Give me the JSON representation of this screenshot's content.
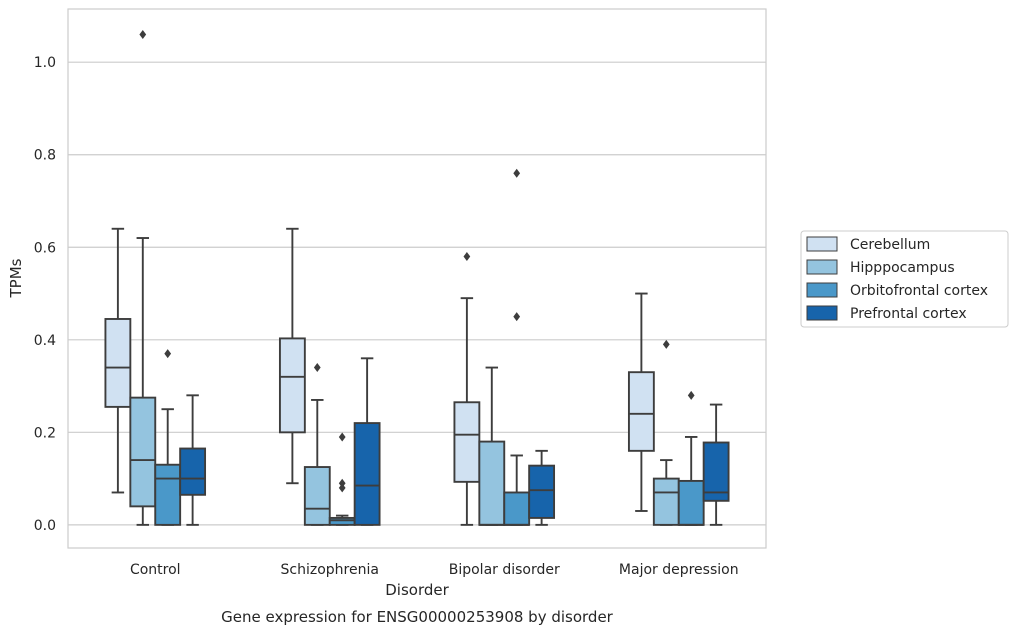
{
  "chart_data": {
    "type": "box",
    "title": "",
    "caption": "Gene expression for ENSG00000253908 by disorder",
    "xlabel": "Disorder",
    "ylabel": "TPMs",
    "ylim": [
      -0.05,
      1.115
    ],
    "yticks": [
      0.0,
      0.2,
      0.4,
      0.6,
      0.8,
      1.0
    ],
    "ytick_labels": [
      "0.0",
      "0.2",
      "0.4",
      "0.6",
      "0.8",
      "1.0"
    ],
    "grid": "horizontal",
    "legend_position": "right",
    "categories": [
      "Control",
      "Schizophrenia",
      "Bipolar disorder",
      "Major depression"
    ],
    "series": [
      {
        "name": "Cerebellum",
        "color": "#d0e1f2",
        "boxes": [
          {
            "whislo": 0.07,
            "q1": 0.255,
            "med": 0.34,
            "q3": 0.445,
            "whishi": 0.64,
            "fliers": []
          },
          {
            "whislo": 0.09,
            "q1": 0.2,
            "med": 0.32,
            "q3": 0.403,
            "whishi": 0.64,
            "fliers": []
          },
          {
            "whislo": 0.0,
            "q1": 0.093,
            "med": 0.195,
            "q3": 0.265,
            "whishi": 0.49,
            "fliers": [
              0.58
            ]
          },
          {
            "whislo": 0.03,
            "q1": 0.16,
            "med": 0.24,
            "q3": 0.33,
            "whishi": 0.5,
            "fliers": []
          }
        ]
      },
      {
        "name": "Hipppocampus",
        "color": "#94c4df",
        "boxes": [
          {
            "whislo": 0.0,
            "q1": 0.04,
            "med": 0.14,
            "q3": 0.275,
            "whishi": 0.62,
            "fliers": [
              1.06
            ]
          },
          {
            "whislo": 0.0,
            "q1": 0.0,
            "med": 0.035,
            "q3": 0.125,
            "whishi": 0.27,
            "fliers": [
              0.34
            ]
          },
          {
            "whislo": 0.0,
            "q1": 0.0,
            "med": 0.0,
            "q3": 0.18,
            "whishi": 0.34,
            "fliers": []
          },
          {
            "whislo": 0.0,
            "q1": 0.0,
            "med": 0.07,
            "q3": 0.1,
            "whishi": 0.14,
            "fliers": [
              0.39
            ]
          }
        ]
      },
      {
        "name": "Orbitofrontal cortex",
        "color": "#4a98c9",
        "boxes": [
          {
            "whislo": 0.0,
            "q1": 0.0,
            "med": 0.1,
            "q3": 0.13,
            "whishi": 0.25,
            "fliers": [
              0.37
            ]
          },
          {
            "whislo": 0.0,
            "q1": 0.0,
            "med": 0.01,
            "q3": 0.015,
            "whishi": 0.02,
            "fliers": [
              0.08,
              0.09,
              0.19
            ]
          },
          {
            "whislo": 0.0,
            "q1": 0.0,
            "med": 0.0,
            "q3": 0.07,
            "whishi": 0.15,
            "fliers": [
              0.45,
              0.76
            ]
          },
          {
            "whislo": 0.0,
            "q1": 0.0,
            "med": 0.0,
            "q3": 0.095,
            "whishi": 0.19,
            "fliers": [
              0.28
            ]
          }
        ]
      },
      {
        "name": "Prefrontal cortex",
        "color": "#1764ab",
        "boxes": [
          {
            "whislo": 0.0,
            "q1": 0.065,
            "med": 0.1,
            "q3": 0.165,
            "whishi": 0.28,
            "fliers": []
          },
          {
            "whislo": 0.0,
            "q1": 0.0,
            "med": 0.085,
            "q3": 0.22,
            "whishi": 0.36,
            "fliers": []
          },
          {
            "whislo": 0.0,
            "q1": 0.015,
            "med": 0.075,
            "q3": 0.128,
            "whishi": 0.16,
            "fliers": []
          },
          {
            "whislo": 0.0,
            "q1": 0.052,
            "med": 0.07,
            "q3": 0.178,
            "whishi": 0.26,
            "fliers": []
          }
        ]
      }
    ]
  }
}
